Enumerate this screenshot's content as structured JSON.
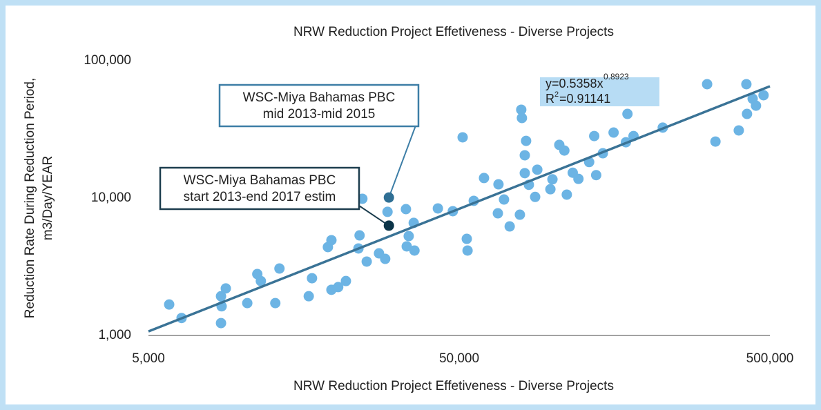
{
  "chart_data": {
    "type": "scatter",
    "title": "NRW Reduction Project Effetiveness - Diverse Projects",
    "xlabel": "NRW Reduction Project Effetiveness - Diverse Projects",
    "ylabel": [
      "Reduction Rate During Reduction Period,",
      "m3/Day/YEAR"
    ],
    "xscale": "log",
    "yscale": "log",
    "grid": false,
    "xlim": [
      5000,
      500000
    ],
    "ylim": [
      1000,
      100000
    ],
    "xticks": [
      {
        "value": 5000,
        "label": "5,000"
      },
      {
        "value": 50000,
        "label": "50,000"
      },
      {
        "value": 500000,
        "label": "500,000"
      }
    ],
    "yticks": [
      {
        "value": 1000,
        "label": "1,000"
      },
      {
        "value": 10000,
        "label": "10,000"
      },
      {
        "value": 100000,
        "label": "100,000"
      }
    ],
    "points": {
      "color": "#6cb4e4",
      "x": [
        5830,
        6390,
        8560,
        8600,
        8560,
        8870,
        10400,
        11200,
        11500,
        12800,
        13200,
        16400,
        16800,
        18900,
        19400,
        19400,
        20400,
        21600,
        23700,
        23900,
        24400,
        25200,
        27600,
        28900,
        29400,
        33700,
        33900,
        34400,
        35700,
        35900,
        42700,
        47700,
        51300,
        52900,
        53200,
        55700,
        60100,
        66600,
        66900,
        69700,
        72700,
        78400,
        79200,
        79600,
        81300,
        82100,
        81300,
        83800,
        87800,
        89200,
        98300,
        99800,
        105000,
        109000,
        111000,
        116000,
        121000,
        131000,
        136000,
        138000,
        145000,
        157000,
        172000,
        174000,
        182000,
        226000,
        314000,
        334000,
        397000,
        420000,
        422000,
        440000,
        451000,
        477000
      ],
      "y": [
        1680,
        1340,
        1930,
        1630,
        1230,
        2200,
        1720,
        2800,
        2490,
        1720,
        3070,
        1930,
        2610,
        4400,
        4940,
        2150,
        2250,
        2490,
        4300,
        5350,
        9890,
        3450,
        3960,
        3610,
        7940,
        8310,
        4450,
        5290,
        6600,
        4150,
        8410,
        8030,
        27700,
        5050,
        4150,
        9550,
        14000,
        7750,
        12600,
        9770,
        6220,
        7570,
        44000,
        38300,
        20500,
        26100,
        15200,
        12500,
        10200,
        16100,
        11600,
        13700,
        24400,
        22200,
        10600,
        15300,
        13800,
        18300,
        28300,
        14700,
        21200,
        30000,
        25500,
        41000,
        28300,
        32600,
        67500,
        25800,
        31100,
        67500,
        41000,
        52900,
        47100,
        56100
      ]
    },
    "highlights": [
      {
        "x": 29700,
        "y": 10100,
        "color": "#2f6f94",
        "border": "#3d7ea6",
        "label": [
          "WSC-Miya Bahamas PBC",
          "mid 2013-mid 2015"
        ]
      },
      {
        "x": 29700,
        "y": 6300,
        "color": "#0c3448",
        "border": "#1c3d4e",
        "label": [
          "WSC-Miya Bahamas PBC",
          "start 2013-end 2017 estim"
        ]
      }
    ],
    "trendline": {
      "color": "#3a7396",
      "coefficient": 0.5358,
      "exponent": 0.8923,
      "equation": "y=0.5358x",
      "equation_exponent": "0.8923",
      "r2_label": "R",
      "r2_sup": "2",
      "r2_value": "=0.91141"
    }
  }
}
